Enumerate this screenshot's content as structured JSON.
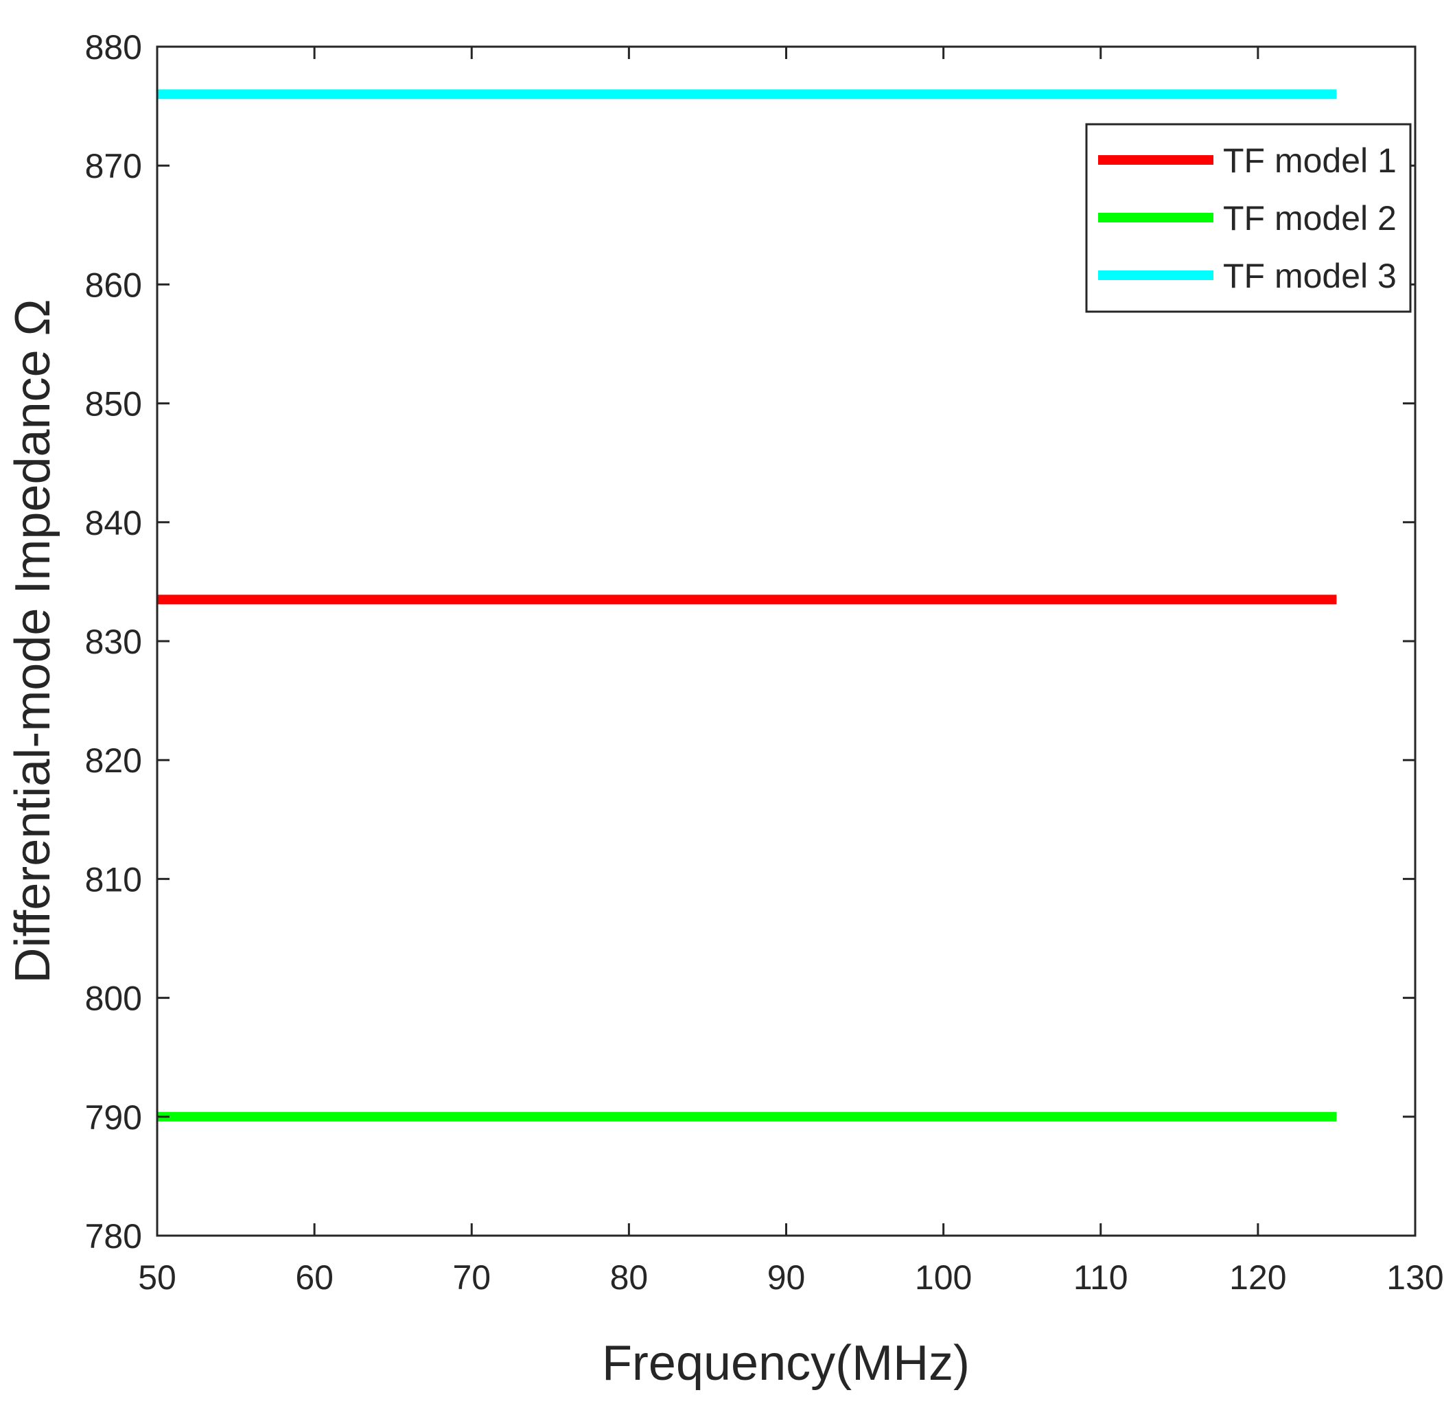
{
  "chart_data": {
    "type": "line",
    "title": "",
    "xlabel": "Frequency(MHz)",
    "ylabel": "Differential-mode Impedance Ω",
    "xlim": [
      50,
      130
    ],
    "ylim": [
      780,
      880
    ],
    "xticks": [
      50,
      60,
      70,
      80,
      90,
      100,
      110,
      120,
      130
    ],
    "yticks": [
      780,
      790,
      800,
      810,
      820,
      830,
      840,
      850,
      860,
      870,
      880
    ],
    "grid": false,
    "legend_position": "top-right",
    "series": [
      {
        "name": "TF model 1",
        "color": "#ff0000",
        "x": [
          50,
          125
        ],
        "y": [
          833.5,
          833.5
        ]
      },
      {
        "name": "TF model 2",
        "color": "#00ff00",
        "x": [
          50,
          125
        ],
        "y": [
          790,
          790
        ]
      },
      {
        "name": "TF model 3",
        "color": "#00ffff",
        "x": [
          50,
          125
        ],
        "y": [
          876,
          876
        ]
      }
    ]
  }
}
